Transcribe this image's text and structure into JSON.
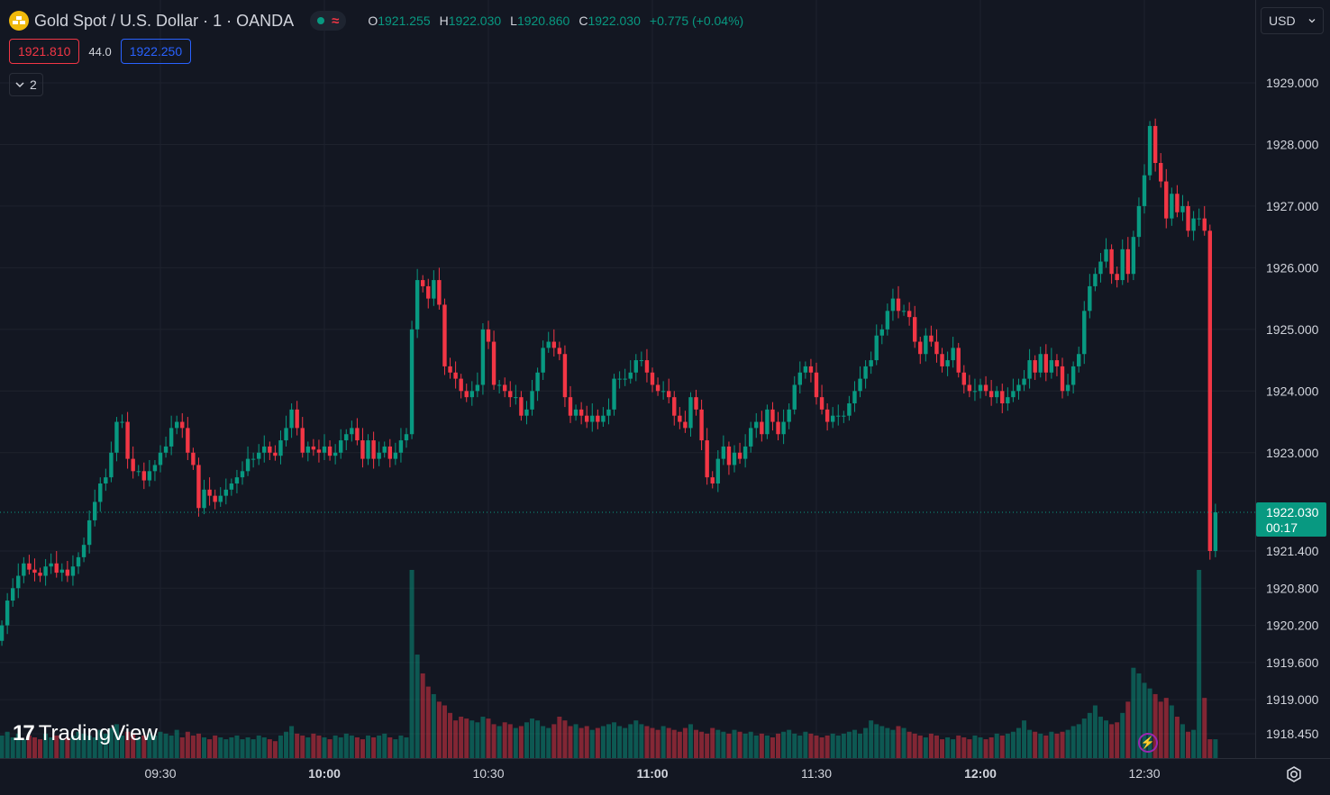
{
  "header": {
    "symbol_title": "Gold Spot / U.S. Dollar · 1 · OANDA",
    "symbol_icon": "gold-bars-icon",
    "market_status_icon": "market-open-dot-icon",
    "wave_icon": "approx-wave-icon",
    "ohlc": {
      "o_label": "O",
      "o_value": "1921.255",
      "h_label": "H",
      "h_value": "1922.030",
      "l_label": "L",
      "l_value": "1920.860",
      "c_label": "C",
      "c_value": "1922.030",
      "change": "+0.775 (+0.04%)"
    },
    "sell_price": "1921.810",
    "spread": "44.0",
    "buy_price": "1922.250",
    "indicators_count": "2",
    "currency": "USD"
  },
  "branding": {
    "logo_mark": "17",
    "logo_text": "TradingView"
  },
  "colors": {
    "up": "#089981",
    "down": "#f23645",
    "background": "#131722",
    "grid": "#1e222d"
  },
  "chart_data": {
    "type": "candlestick",
    "symbol": "XAUUSD",
    "interval": "1 minute",
    "x_ticks": [
      "09:30",
      "10:00",
      "10:30",
      "11:00",
      "11:30",
      "12:00",
      "12:30"
    ],
    "y_ticks": [
      "1929.000",
      "1928.000",
      "1927.000",
      "1926.000",
      "1925.000",
      "1924.000",
      "1923.000",
      "1921.400",
      "1920.800",
      "1920.200",
      "1919.600",
      "1919.000",
      "1918.450"
    ],
    "last_price": "1922.030",
    "countdown": "00:17",
    "y_upper_range": [
      1922.5,
      1929.0
    ],
    "y_lower_range": [
      1918.45,
      1921.4
    ],
    "start_time": "09:01",
    "closes": [
      1920.2,
      1920.6,
      1920.8,
      1921.0,
      1921.2,
      1921.1,
      1921.05,
      1921.0,
      1921.15,
      1921.2,
      1921.05,
      1921.1,
      1921.0,
      1921.15,
      1921.3,
      1921.5,
      1921.9,
      1922.2,
      1922.5,
      1922.6,
      1923.0,
      1923.5,
      1923.5,
      1922.9,
      1922.7,
      1922.7,
      1922.55,
      1922.7,
      1922.8,
      1923.0,
      1923.1,
      1923.4,
      1923.5,
      1923.4,
      1923.0,
      1922.8,
      1922.1,
      1922.4,
      1922.3,
      1922.2,
      1922.3,
      1922.4,
      1922.5,
      1922.6,
      1922.7,
      1922.9,
      1922.9,
      1923.0,
      1923.1,
      1923.0,
      1922.95,
      1923.2,
      1923.4,
      1923.7,
      1923.4,
      1923.0,
      1923.1,
      1923.05,
      1923.0,
      1923.1,
      1922.95,
      1923.0,
      1923.2,
      1923.3,
      1923.4,
      1923.2,
      1922.9,
      1923.2,
      1922.9,
      1923.0,
      1923.1,
      1922.9,
      1923.0,
      1923.2,
      1923.3,
      1925.0,
      1925.8,
      1925.7,
      1925.5,
      1925.8,
      1925.4,
      1924.4,
      1924.3,
      1924.2,
      1924.0,
      1923.9,
      1924.0,
      1924.1,
      1925.0,
      1924.8,
      1924.1,
      1924.1,
      1924.0,
      1923.9,
      1923.9,
      1923.6,
      1923.7,
      1924.0,
      1924.3,
      1924.7,
      1924.8,
      1924.7,
      1924.6,
      1923.9,
      1923.6,
      1923.7,
      1923.6,
      1923.5,
      1923.6,
      1923.5,
      1923.6,
      1923.7,
      1924.2,
      1924.2,
      1924.2,
      1924.3,
      1924.5,
      1924.5,
      1924.3,
      1924.1,
      1924.0,
      1924.0,
      1923.9,
      1923.6,
      1923.5,
      1923.4,
      1923.9,
      1923.7,
      1923.2,
      1922.6,
      1922.5,
      1922.9,
      1923.1,
      1922.8,
      1923.0,
      1922.9,
      1923.1,
      1923.4,
      1923.5,
      1923.3,
      1923.7,
      1923.5,
      1923.3,
      1923.5,
      1923.7,
      1924.1,
      1924.3,
      1924.4,
      1924.3,
      1923.9,
      1923.7,
      1923.5,
      1923.6,
      1923.6,
      1923.6,
      1923.8,
      1924.0,
      1924.2,
      1924.4,
      1924.5,
      1924.9,
      1925.0,
      1925.3,
      1925.5,
      1925.3,
      1925.3,
      1925.2,
      1924.8,
      1924.6,
      1924.9,
      1924.8,
      1924.6,
      1924.4,
      1924.5,
      1924.7,
      1924.3,
      1924.1,
      1924.0,
      1924.0,
      1924.1,
      1924.0,
      1923.9,
      1924.0,
      1923.8,
      1923.9,
      1924.0,
      1924.1,
      1924.2,
      1924.5,
      1924.3,
      1924.6,
      1924.3,
      1924.5,
      1924.4,
      1924.0,
      1924.1,
      1924.4,
      1924.6,
      1925.3,
      1925.7,
      1925.9,
      1926.1,
      1926.3,
      1925.9,
      1925.8,
      1926.3,
      1925.9,
      1926.5,
      1927.0,
      1927.5,
      1928.3,
      1927.7,
      1927.4,
      1926.8,
      1927.2,
      1926.9,
      1927.0,
      1926.6,
      1926.8,
      1926.8,
      1926.6,
      1921.4,
      1922.03
    ],
    "volume_range": [
      0,
      100
    ],
    "volumes": [
      12,
      14,
      11,
      13,
      10,
      12,
      11,
      10,
      13,
      11,
      12,
      10,
      11,
      12,
      14,
      13,
      12,
      11,
      15,
      13,
      16,
      18,
      12,
      14,
      13,
      11,
      12,
      13,
      12,
      14,
      13,
      12,
      15,
      11,
      14,
      12,
      13,
      11,
      10,
      12,
      11,
      10,
      11,
      12,
      10,
      11,
      10,
      12,
      11,
      10,
      9,
      12,
      14,
      17,
      13,
      12,
      11,
      13,
      12,
      11,
      10,
      12,
      11,
      13,
      12,
      11,
      10,
      12,
      11,
      12,
      13,
      11,
      10,
      12,
      11,
      100,
      55,
      45,
      38,
      34,
      30,
      28,
      24,
      20,
      22,
      21,
      20,
      19,
      22,
      21,
      18,
      17,
      19,
      18,
      16,
      17,
      19,
      21,
      20,
      17,
      16,
      18,
      22,
      20,
      17,
      18,
      16,
      17,
      15,
      16,
      17,
      18,
      19,
      17,
      16,
      18,
      20,
      18,
      17,
      16,
      15,
      17,
      16,
      15,
      14,
      16,
      18,
      15,
      14,
      13,
      16,
      15,
      14,
      13,
      15,
      14,
      13,
      14,
      12,
      13,
      12,
      11,
      13,
      14,
      15,
      13,
      12,
      14,
      13,
      12,
      11,
      12,
      13,
      12,
      13,
      14,
      15,
      13,
      16,
      20,
      18,
      17,
      16,
      15,
      17,
      16,
      14,
      13,
      12,
      11,
      13,
      12,
      10,
      11,
      10,
      12,
      11,
      10,
      12,
      11,
      10,
      11,
      13,
      12,
      13,
      14,
      16,
      20,
      15,
      14,
      13,
      12,
      14,
      13,
      14,
      15,
      17,
      18,
      21,
      24,
      28,
      22,
      20,
      18,
      19,
      24,
      30,
      48,
      45,
      40,
      37,
      34,
      30,
      32,
      28,
      22,
      18,
      14,
      15,
      100,
      32
    ]
  }
}
